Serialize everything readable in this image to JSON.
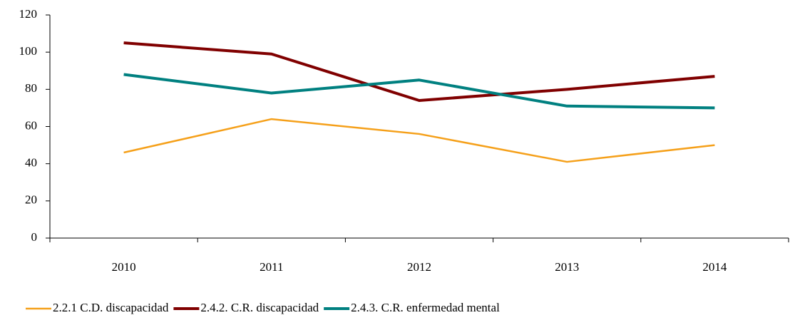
{
  "chart_data": {
    "type": "line",
    "categories": [
      "2010",
      "2011",
      "2012",
      "2013",
      "2014"
    ],
    "series": [
      {
        "name": "2.2.1 C.D. discapacidad",
        "color": "#f5a01a",
        "values": [
          46,
          64,
          56,
          41,
          50
        ]
      },
      {
        "name": "2.4.2. C.R. discapacidad",
        "color": "#800000",
        "values": [
          105,
          99,
          74,
          80,
          87
        ]
      },
      {
        "name": "2.4.3. C.R. enfermedad mental",
        "color": "#008080",
        "values": [
          88,
          78,
          85,
          71,
          70
        ]
      }
    ],
    "ylim": [
      0,
      120
    ],
    "yticks": [
      0,
      20,
      40,
      60,
      80,
      100,
      120
    ],
    "grid": false,
    "legend": "bottom"
  }
}
